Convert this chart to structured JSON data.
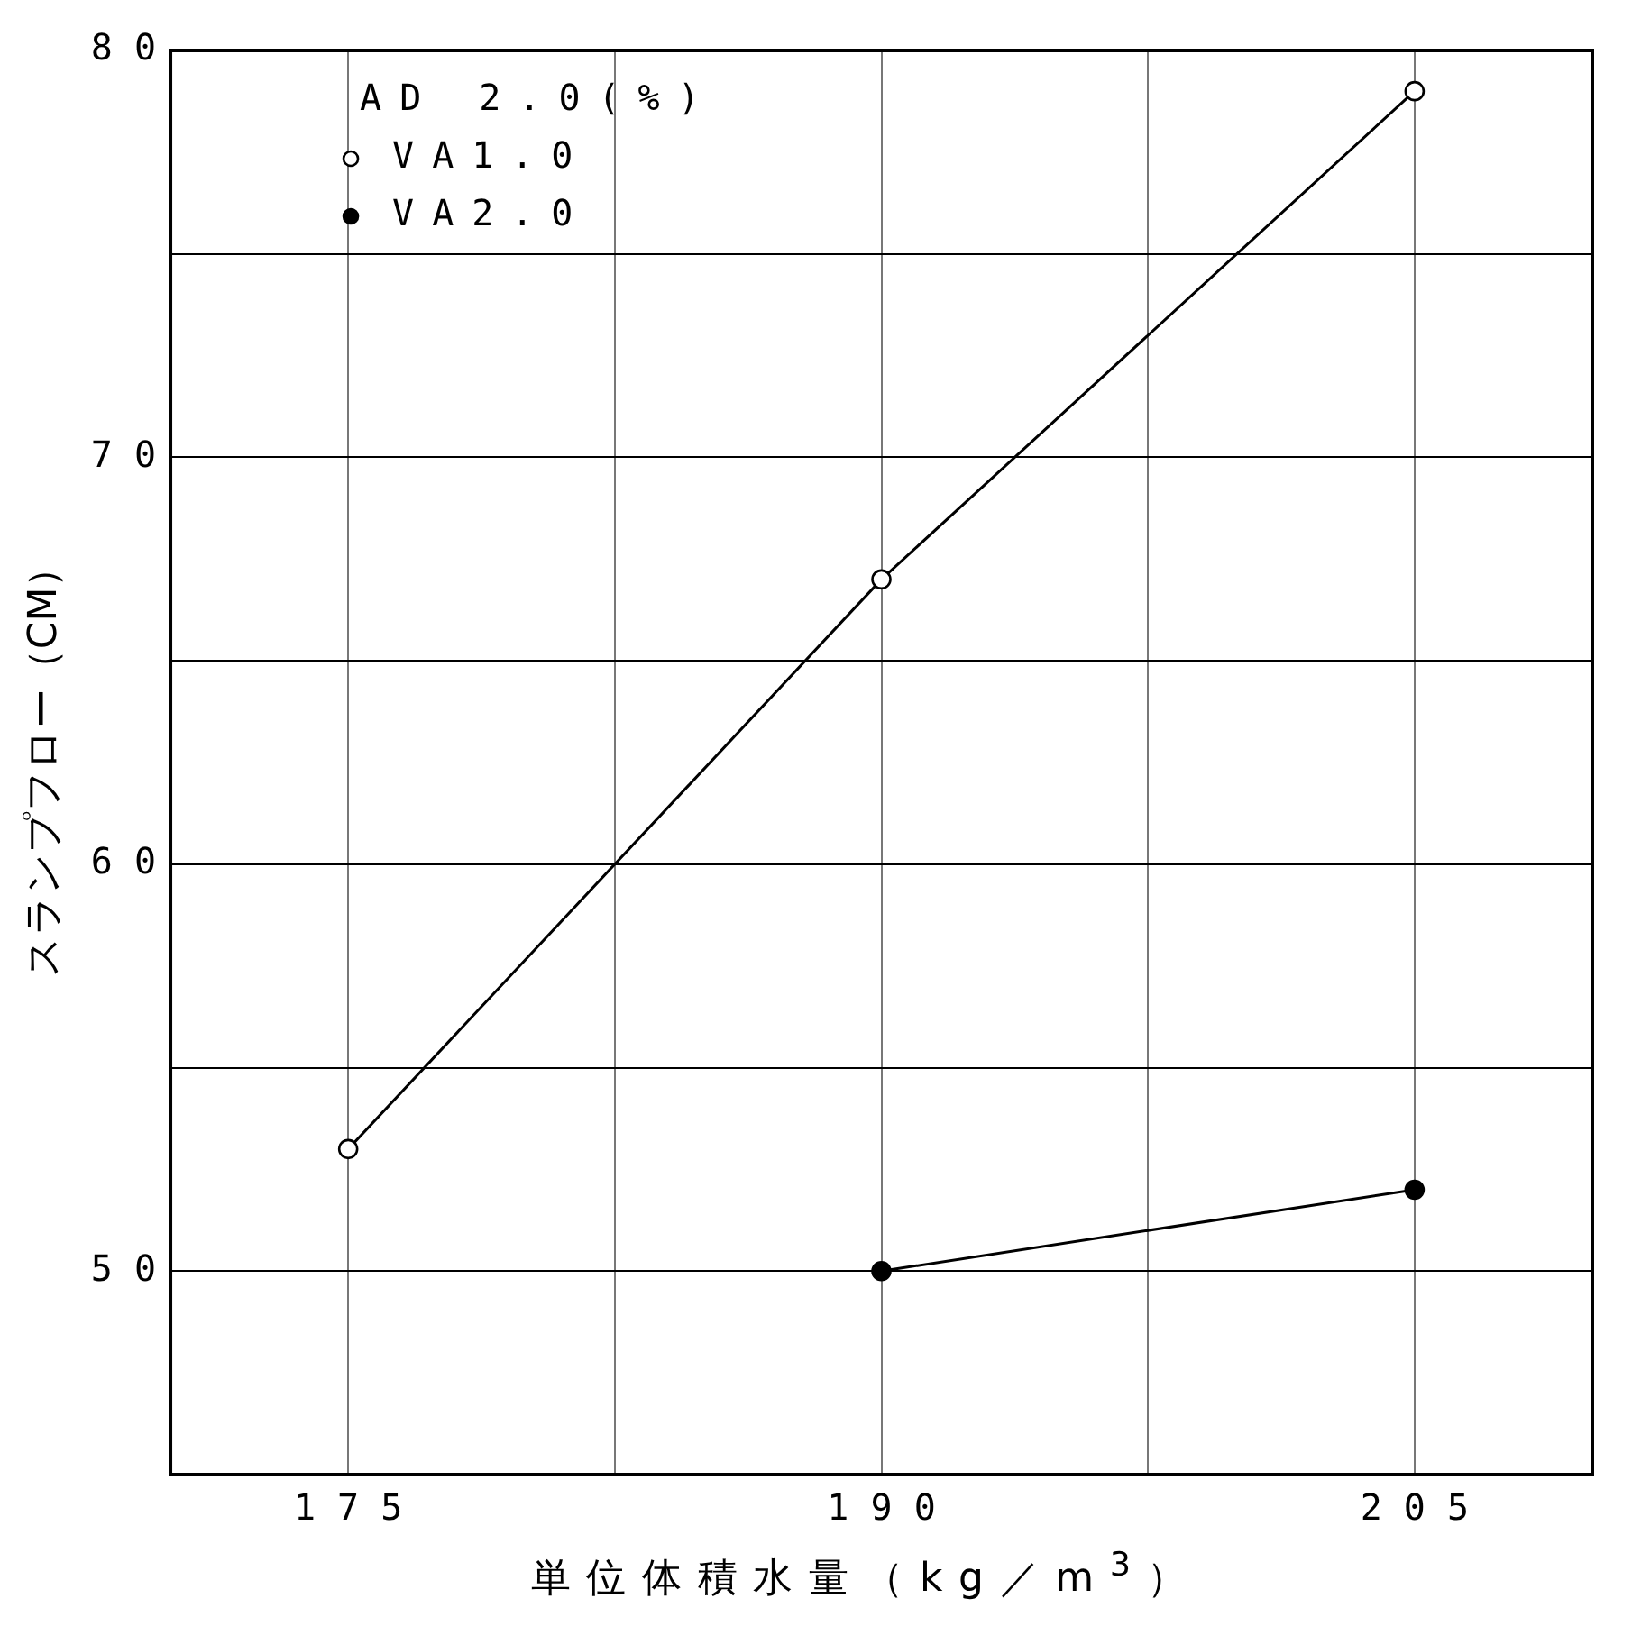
{
  "chart_data": {
    "type": "line",
    "xlabel": "単位体積水量（kg／m$^{3}$）",
    "ylabel": "スランプフロー（CM）",
    "legend_title": "AD 2.0(%)",
    "x": [
      175,
      190,
      205
    ],
    "series": [
      {
        "name": "VA1.0",
        "color": "#000000",
        "values": [
          53,
          67,
          79
        ]
      },
      {
        "name": "VA2.0",
        "color": "#000000",
        "values": [
          null,
          50,
          52
        ]
      }
    ],
    "xlim": [
      170,
      210
    ],
    "xticks": [
      175,
      {
        "value": 182.5,
        "label": null
      },
      190,
      {
        "value": 197.5,
        "label": null
      },
      205
    ],
    "ylim": [
      45,
      80
    ],
    "yticks": [
      {
        "value": 45,
        "label": null
      },
      50,
      {
        "value": 55,
        "label": null
      },
      60,
      {
        "value": 65,
        "label": null
      },
      70,
      {
        "value": 75,
        "label": null
      },
      80
    ],
    "grid": true,
    "legend": "top left",
    "marker": "circle",
    "line_style": "solid"
  }
}
